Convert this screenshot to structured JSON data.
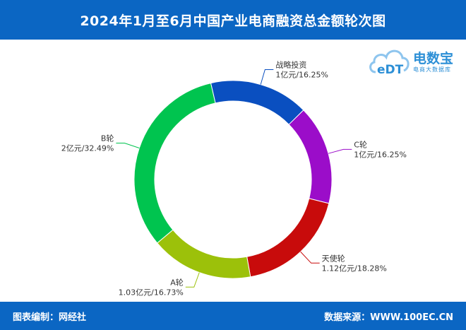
{
  "header": {
    "title": "2024年1月至6月中国产业电商融资总金额轮次图"
  },
  "footer": {
    "left": "图表编制：网经社",
    "right": "数据来源：WWW.100EC.CN"
  },
  "logo": {
    "mark": "eDT",
    "text": "电数宝",
    "sub": "电商大数据库"
  },
  "colors": {
    "header": "#0b66c3"
  },
  "chart_data": {
    "type": "pie",
    "style": "donut",
    "title": "2024年1月至6月中国产业电商融资总金额轮次图",
    "unit": "亿元",
    "slices": [
      {
        "name": "战略投资",
        "amount": 1,
        "amount_label": "1亿元/16.25%",
        "percent": 16.25,
        "color": "#0a4fc0"
      },
      {
        "name": "C轮",
        "amount": 1,
        "amount_label": "1亿元/16.25%",
        "percent": 16.25,
        "color": "#9b0dc9"
      },
      {
        "name": "天使轮",
        "amount": 1.12,
        "amount_label": "1.12亿元/18.28%",
        "percent": 18.28,
        "color": "#c80b0b"
      },
      {
        "name": "A轮",
        "amount": 1.03,
        "amount_label": "1.03亿元/16.73%",
        "percent": 16.73,
        "color": "#9cc10a"
      },
      {
        "name": "B轮",
        "amount": 2,
        "amount_label": "2亿元/32.49%",
        "percent": 32.49,
        "color": "#00c44f"
      }
    ]
  }
}
